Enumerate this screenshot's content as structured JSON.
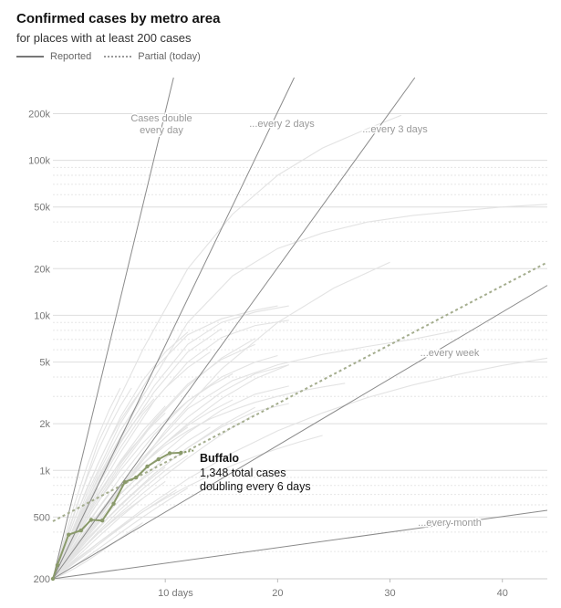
{
  "header": {
    "title": "Confirmed cases by metro area",
    "subtitle": "for places with at least 200 cases",
    "legend": [
      {
        "label": "Reported",
        "style": "solid"
      },
      {
        "label": "Partial (today)",
        "style": "dotted"
      }
    ]
  },
  "chart_data": {
    "type": "line",
    "scale": {
      "y": "log"
    },
    "xlim": [
      0,
      44
    ],
    "ylim": [
      200,
      250000
    ],
    "x_ticks": [
      {
        "value": 10,
        "label": "10 days"
      },
      {
        "value": 20,
        "label": "20"
      },
      {
        "value": 30,
        "label": "30"
      },
      {
        "value": 40,
        "label": "40"
      }
    ],
    "y_ticks": [
      {
        "value": 200,
        "label": "200"
      },
      {
        "value": 500,
        "label": "500"
      },
      {
        "value": 1000,
        "label": "1k"
      },
      {
        "value": 2000,
        "label": "2k"
      },
      {
        "value": 5000,
        "label": "5k"
      },
      {
        "value": 10000,
        "label": "10k"
      },
      {
        "value": 20000,
        "label": "20k"
      },
      {
        "value": 50000,
        "label": "50k"
      },
      {
        "value": 100000,
        "label": "100k"
      },
      {
        "value": 200000,
        "label": "200k"
      }
    ],
    "reference_lines": [
      {
        "label": "Cases double every day",
        "label_lines": [
          "Cases double",
          "every day"
        ],
        "doubling_days": 1
      },
      {
        "label": "...every 2 days",
        "label_lines": [
          "...every 2 days"
        ],
        "doubling_days": 2
      },
      {
        "label": "...every 3 days",
        "label_lines": [
          "...every 3 days"
        ],
        "doubling_days": 3
      },
      {
        "label": "...every week",
        "label_lines": [
          "...every week"
        ],
        "doubling_days": 7
      },
      {
        "label": "...every month",
        "label_lines": [
          "...every month"
        ],
        "doubling_days": 30
      }
    ],
    "highlight": {
      "name": "Buffalo",
      "detail_lines": [
        "1,348 total cases",
        "doubling every 6 days"
      ],
      "color": "#8a9a6b",
      "x": [
        0,
        0.4,
        1.4,
        2.5,
        3.4,
        4.4,
        5.4,
        6.4,
        7.4,
        8.4,
        9.4,
        10.4,
        11.4
      ],
      "y": [
        200,
        245,
        385,
        410,
        480,
        475,
        610,
        840,
        900,
        1060,
        1180,
        1290,
        1300
      ],
      "partial_x": [
        11.4,
        12.6
      ],
      "partial_y": [
        1300,
        1348
      ],
      "projection_x": [
        0,
        44
      ],
      "projection_y": [
        470,
        22000
      ]
    },
    "background_lines": [
      {
        "x": [
          0,
          4,
          8,
          12,
          16,
          20,
          24,
          28,
          32,
          36,
          40,
          44
        ],
        "y": [
          200,
          900,
          3000,
          9000,
          18000,
          27000,
          34000,
          40000,
          44000,
          47000,
          50000,
          52000
        ]
      },
      {
        "x": [
          0,
          4,
          8,
          12,
          16,
          20,
          24,
          28,
          31
        ],
        "y": [
          200,
          1500,
          6000,
          20000,
          45000,
          80000,
          120000,
          160000,
          195000
        ]
      },
      {
        "x": [
          0,
          5,
          10,
          15,
          20,
          25,
          30
        ],
        "y": [
          200,
          600,
          1800,
          4500,
          9000,
          15000,
          22000
        ]
      },
      {
        "x": [
          0,
          4,
          8,
          12,
          16,
          20,
          24,
          28,
          32,
          36
        ],
        "y": [
          200,
          500,
          1200,
          2500,
          3800,
          4800,
          5600,
          6300,
          7000,
          8000
        ]
      },
      {
        "x": [
          0,
          3,
          6,
          9,
          12,
          15,
          18,
          21
        ],
        "y": [
          200,
          600,
          1600,
          3500,
          6500,
          9000,
          10500,
          11500
        ]
      },
      {
        "x": [
          0,
          3,
          6,
          9,
          12,
          15,
          18,
          20
        ],
        "y": [
          200,
          700,
          2000,
          4500,
          7500,
          9500,
          10800,
          11500
        ]
      },
      {
        "x": [
          0,
          3,
          6,
          9,
          12,
          15,
          18,
          21
        ],
        "y": [
          200,
          550,
          1300,
          2800,
          5000,
          7200,
          8600,
          9300
        ]
      },
      {
        "x": [
          0,
          3,
          6,
          9,
          12,
          15,
          18
        ],
        "y": [
          200,
          500,
          1100,
          2100,
          3600,
          5200,
          6500
        ]
      },
      {
        "x": [
          0,
          3,
          6,
          9,
          12,
          15,
          18,
          20
        ],
        "y": [
          200,
          450,
          900,
          1700,
          2800,
          4000,
          5000,
          5500
        ]
      },
      {
        "x": [
          0,
          3,
          6,
          9,
          12,
          15,
          18,
          21
        ],
        "y": [
          200,
          420,
          800,
          1400,
          2200,
          3200,
          4200,
          4800
        ]
      },
      {
        "x": [
          0,
          3,
          6,
          9,
          12,
          15,
          18,
          21
        ],
        "y": [
          200,
          380,
          700,
          1150,
          1750,
          2450,
          3100,
          3500
        ]
      },
      {
        "x": [
          0,
          3,
          6,
          9,
          12,
          15,
          18,
          21
        ],
        "y": [
          200,
          350,
          600,
          950,
          1400,
          1900,
          2400,
          2700
        ]
      },
      {
        "x": [
          0,
          3,
          6,
          9,
          12,
          15
        ],
        "y": [
          200,
          600,
          1500,
          3200,
          5800,
          8200
        ]
      },
      {
        "x": [
          0,
          2,
          4,
          6,
          8,
          10,
          12
        ],
        "y": [
          200,
          500,
          1100,
          2200,
          3800,
          5800,
          7800
        ]
      },
      {
        "x": [
          0,
          2,
          4,
          6,
          8,
          10,
          12,
          14
        ],
        "y": [
          200,
          420,
          800,
          1400,
          2300,
          3400,
          4600,
          5800
        ]
      },
      {
        "x": [
          0,
          2,
          4,
          6,
          8,
          10,
          12,
          14,
          16
        ],
        "y": [
          200,
          360,
          620,
          1000,
          1500,
          2100,
          2800,
          3500,
          4200
        ]
      },
      {
        "x": [
          0,
          2,
          4,
          6,
          8,
          10,
          12,
          14,
          16
        ],
        "y": [
          200,
          330,
          520,
          780,
          1100,
          1500,
          1950,
          2400,
          2850
        ]
      },
      {
        "x": [
          0,
          2,
          4,
          6,
          8,
          10,
          12,
          14
        ],
        "y": [
          200,
          300,
          450,
          650,
          900,
          1200,
          1550,
          1900
        ]
      },
      {
        "x": [
          0,
          2,
          4,
          6,
          8,
          10,
          12
        ],
        "y": [
          200,
          280,
          400,
          560,
          760,
          1000,
          1250
        ]
      },
      {
        "x": [
          0,
          2,
          4,
          6,
          8,
          10
        ],
        "y": [
          200,
          270,
          370,
          500,
          660,
          850
        ]
      },
      {
        "x": [
          0,
          2,
          4,
          6,
          8,
          10,
          12
        ],
        "y": [
          200,
          320,
          500,
          760,
          1100,
          1500,
          1900
        ]
      },
      {
        "x": [
          0,
          2,
          4,
          6,
          8,
          10
        ],
        "y": [
          200,
          380,
          680,
          1150,
          1800,
          2600
        ]
      },
      {
        "x": [
          0,
          2,
          4,
          6,
          8
        ],
        "y": [
          200,
          450,
          950,
          1800,
          3000
        ]
      },
      {
        "x": [
          0,
          1,
          2,
          3,
          4,
          5,
          6,
          7,
          8,
          9
        ],
        "y": [
          200,
          250,
          310,
          380,
          460,
          550,
          650,
          760,
          880,
          1000
        ]
      },
      {
        "x": [
          0,
          1,
          2,
          3,
          4,
          5,
          6,
          7,
          8
        ],
        "y": [
          200,
          240,
          285,
          335,
          390,
          450,
          515,
          585,
          660
        ]
      },
      {
        "x": [
          0,
          1,
          2,
          3,
          4,
          5,
          6,
          7
        ],
        "y": [
          200,
          260,
          330,
          410,
          500,
          600,
          710,
          830
        ]
      },
      {
        "x": [
          0,
          1,
          2,
          3,
          4,
          5,
          6
        ],
        "y": [
          200,
          230,
          265,
          300,
          340,
          385,
          430
        ]
      },
      {
        "x": [
          0,
          1,
          2,
          3,
          4,
          5,
          6,
          7,
          8,
          9,
          10,
          11
        ],
        "y": [
          200,
          225,
          255,
          290,
          330,
          375,
          425,
          480,
          540,
          605,
          675,
          750
        ]
      },
      {
        "x": [
          0,
          2,
          4,
          6,
          8,
          10,
          12,
          14,
          16,
          18
        ],
        "y": [
          200,
          280,
          390,
          530,
          710,
          930,
          1200,
          1520,
          1900,
          2300
        ]
      },
      {
        "x": [
          0,
          1,
          2,
          3,
          4,
          5,
          6,
          7,
          8,
          9,
          10
        ],
        "y": [
          200,
          280,
          390,
          530,
          700,
          900,
          1130,
          1390,
          1680,
          2000,
          2350
        ]
      },
      {
        "x": [
          0,
          1,
          2,
          3,
          4,
          5,
          6,
          7,
          8,
          9
        ],
        "y": [
          200,
          300,
          440,
          630,
          870,
          1170,
          1530,
          1950,
          2400,
          2900
        ]
      },
      {
        "x": [
          0,
          1,
          2,
          3,
          4,
          5,
          6,
          7,
          8
        ],
        "y": [
          200,
          320,
          500,
          760,
          1100,
          1550,
          2100,
          2700,
          3400
        ]
      },
      {
        "x": [
          0,
          1,
          2,
          3,
          4,
          5,
          6,
          7
        ],
        "y": [
          200,
          340,
          560,
          880,
          1330,
          1900,
          2600,
          3400
        ]
      },
      {
        "x": [
          0,
          1,
          2,
          3,
          4,
          5,
          6
        ],
        "y": [
          200,
          360,
          630,
          1050,
          1650,
          2450,
          3400
        ]
      },
      {
        "x": [
          0,
          1,
          2,
          3,
          4,
          5,
          6,
          7,
          8,
          9,
          10
        ],
        "y": [
          200,
          240,
          290,
          350,
          420,
          500,
          590,
          690,
          800,
          920,
          1050
        ]
      },
      {
        "x": [
          0,
          1,
          2,
          3,
          4,
          5,
          6,
          7,
          8,
          9,
          10,
          11,
          12
        ],
        "y": [
          200,
          220,
          245,
          275,
          310,
          350,
          395,
          445,
          500,
          560,
          625,
          695,
          770
        ]
      },
      {
        "x": [
          0,
          1,
          2,
          3,
          4,
          5,
          6,
          7,
          8
        ],
        "y": [
          200,
          215,
          235,
          260,
          290,
          325,
          365,
          410,
          460
        ]
      },
      {
        "x": [
          0,
          1,
          2,
          3,
          4,
          5
        ],
        "y": [
          200,
          260,
          340,
          440,
          560,
          700
        ]
      },
      {
        "x": [
          0,
          1,
          2,
          3,
          4
        ],
        "y": [
          200,
          290,
          410,
          570,
          770
        ]
      },
      {
        "x": [
          0,
          1,
          2,
          3
        ],
        "y": [
          200,
          250,
          310,
          380
        ]
      },
      {
        "x": [
          0,
          3,
          6,
          9,
          12,
          15,
          18
        ],
        "y": [
          200,
          480,
          1050,
          2050,
          3500,
          5300,
          7100
        ]
      },
      {
        "x": [
          0,
          3,
          6,
          9,
          12,
          15,
          18,
          21
        ],
        "y": [
          200,
          410,
          760,
          1300,
          2000,
          2900,
          3900,
          4800
        ]
      },
      {
        "x": [
          0,
          3,
          6,
          9,
          12,
          15,
          18
        ],
        "y": [
          200,
          360,
          600,
          950,
          1400,
          1950,
          2550
        ]
      },
      {
        "x": [
          0,
          2,
          4,
          6,
          8,
          10,
          12,
          14,
          16,
          18,
          20,
          22,
          24,
          26
        ],
        "y": [
          200,
          330,
          520,
          780,
          1100,
          1450,
          1800,
          2150,
          2450,
          2750,
          3000,
          3250,
          3450,
          3650
        ]
      },
      {
        "x": [
          0,
          4,
          8,
          12,
          16,
          20,
          24,
          28,
          32,
          36,
          40,
          44
        ],
        "y": [
          200,
          340,
          560,
          880,
          1300,
          1800,
          2350,
          2950,
          3550,
          4150,
          4750,
          5300
        ]
      },
      {
        "x": [
          0,
          2,
          4,
          6,
          8,
          10,
          12,
          14,
          16,
          18,
          20,
          22,
          24
        ],
        "y": [
          200,
          260,
          340,
          430,
          540,
          660,
          790,
          930,
          1080,
          1230,
          1380,
          1530,
          1680
        ]
      }
    ]
  }
}
